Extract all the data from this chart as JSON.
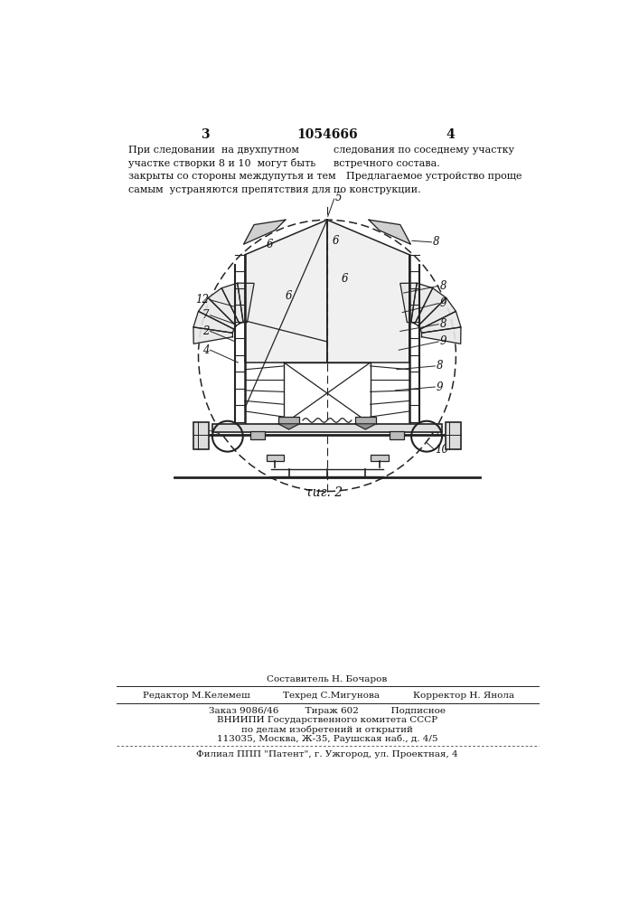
{
  "page_number_left": "3",
  "page_number_center": "1054666",
  "page_number_right": "4",
  "text_left": [
    "При следовании  на двухпутном",
    "участке створки 8 и 10  могут быть",
    "закрыты со стороны междупутья и тем",
    "самым  устраняются препятствия для"
  ],
  "text_right": [
    "следования по соседнему участку",
    "встречного состава.",
    "    Предлагаемое устройство проще",
    "по конструкции."
  ],
  "fig_label": "τиг. 2",
  "footer_line1": "Заказ 9086/46         Тираж 602           Подписное",
  "footer_line2": "ВНИИПИ Государственного комитета СССР",
  "footer_line3": "по делам изобретений и открытий",
  "footer_line4": "113035, Москва, Ж-35, Раушская наб., д. 4/5",
  "footer_line5": "Филиал ППП \"Патент\", г. Ужгород, ул. Проектная, 4",
  "compositor_text": "Составитель Н. Бочаров",
  "editor_text": "Редактор М.Келемеш",
  "techred_text": "Техред С.Мигунова",
  "corrector_text": "Корректор Н. Янола",
  "bg_color": "#ffffff",
  "line_color": "#222222",
  "text_color": "#111111"
}
